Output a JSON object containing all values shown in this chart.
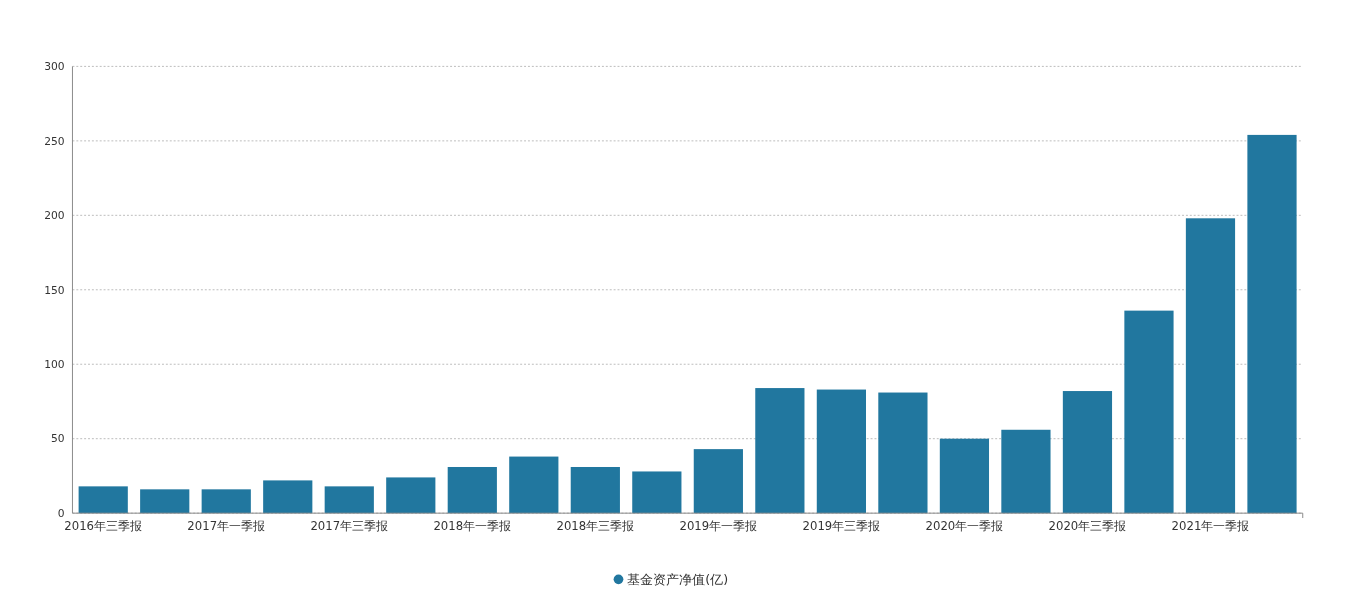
{
  "chart_data": {
    "type": "bar",
    "categories": [
      "2016年三季报",
      null,
      "2017年一季报",
      null,
      "2017年三季报",
      null,
      "2018年一季报",
      null,
      "2018年三季报",
      null,
      "2019年一季报",
      null,
      "2019年三季报",
      null,
      "2020年一季报",
      null,
      "2020年三季报",
      null,
      "2021年一季报",
      null
    ],
    "series": [
      {
        "name": "基金资产净值(亿)",
        "color": "#21779f",
        "values": [
          18,
          16,
          16,
          22,
          18,
          24,
          31,
          38,
          31,
          28,
          43,
          84,
          83,
          81,
          50,
          56,
          82,
          136,
          198,
          254
        ]
      }
    ],
    "ylim": [
      0,
      300
    ],
    "yticks": [
      0,
      50,
      100,
      150,
      200,
      250,
      300
    ],
    "grid": "y",
    "legend": "bottom"
  }
}
